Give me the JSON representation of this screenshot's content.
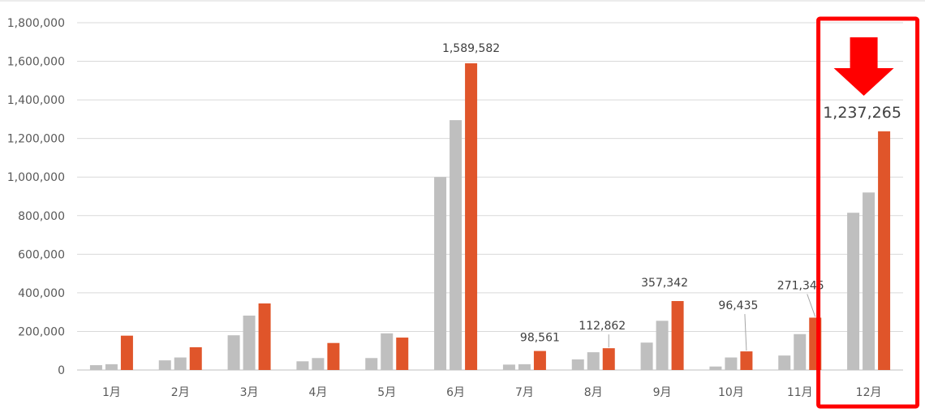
{
  "chart_data": {
    "type": "bar",
    "categories": [
      "1月",
      "2月",
      "3月",
      "4月",
      "5月",
      "6月",
      "7月",
      "8月",
      "9月",
      "10月",
      "11月",
      "12月"
    ],
    "series": [
      {
        "values": [
          25000,
          50000,
          180000,
          45000,
          62000,
          1000000,
          28000,
          55000,
          142000,
          18000,
          75000,
          815000
        ]
      },
      {
        "values": [
          30000,
          65000,
          282000,
          62000,
          190000,
          1295000,
          30000,
          92000,
          255000,
          65000,
          186000,
          920000
        ]
      },
      {
        "values": [
          178000,
          118000,
          345000,
          140000,
          168000,
          1589582,
          98561,
          112862,
          357342,
          96435,
          271345,
          1237265
        ]
      }
    ],
    "data_labels": [
      {
        "category": "6月",
        "text": "1,589,582"
      },
      {
        "category": "7月",
        "text": "98,561"
      },
      {
        "category": "8月",
        "text": "112,862"
      },
      {
        "category": "9月",
        "text": "357,342"
      },
      {
        "category": "10月",
        "text": "96,435"
      },
      {
        "category": "11月",
        "text": "271,345"
      },
      {
        "category": "12月",
        "text": "1,237,265"
      }
    ],
    "y_ticks": [
      "0",
      "200,000",
      "400,000",
      "600,000",
      "800,000",
      "1,000,000",
      "1,200,000",
      "1,400,000",
      "1,600,000",
      "1,800,000"
    ],
    "ylim": [
      0,
      1800000
    ],
    "grid": true,
    "highlight": {
      "category": "12月",
      "box_color": "#ff0000",
      "arrow_color": "#ff0000",
      "arrow": "down-arrow-icon"
    },
    "colors": {
      "series_gray": "#bfbfbf",
      "series_orange": "#e0552a",
      "grid": "#d9d9d9",
      "axis": "#bfbfbf"
    }
  }
}
